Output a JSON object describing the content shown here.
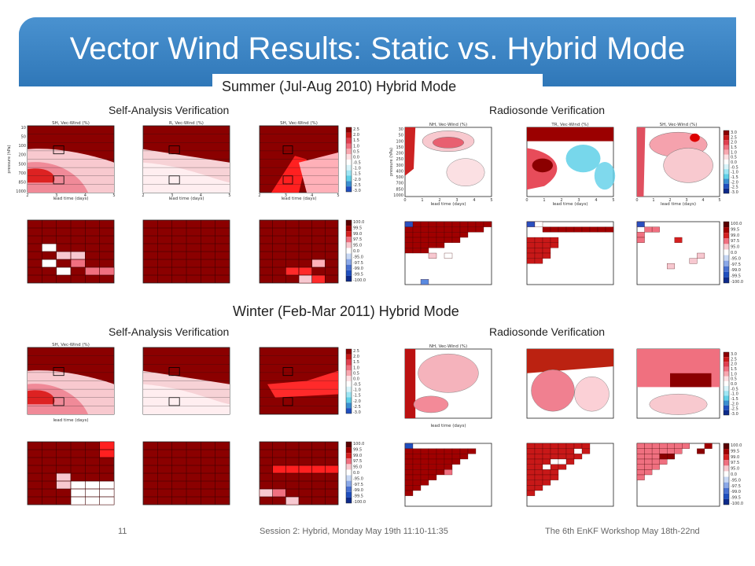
{
  "slide": {
    "title": "Vector Wind Results: Static vs. Hybrid Mode",
    "summer_heading": "Summer (Jul-Aug 2010) Hybrid Mode",
    "winter_heading": "Winter (Feb-Mar 2011) Hybrid Mode",
    "self_analysis_label": "Self-Analysis Verification",
    "radiosonde_label": "Radiosonde Verification",
    "footer_page": "11",
    "footer_session": "Session 2: Hybrid, Monday May 19th 11:10-11:35",
    "footer_workshop": "The 6th EnKF Workshop May 18th-22nd"
  },
  "colors": {
    "title_bar": "#3d86c6",
    "dark_red": "#8b0000",
    "pink": "#f4a6b0",
    "blue": "#1f4fbf",
    "cyan": "#5fd0e8"
  },
  "chart_data": [
    {
      "type": "heatmap",
      "panel": "summer-self-nh",
      "title": "SH, Vec-Wind (%)",
      "xlabel": "lead time (days)",
      "ylabel": "pressure (hPa)",
      "xlim": [
        2,
        5
      ],
      "yticks": [
        "10",
        "50",
        "100",
        "200",
        "500",
        "700",
        "850",
        "1000"
      ]
    },
    {
      "type": "heatmap",
      "panel": "summer-self-tr",
      "title": "R, Vec-Wind (%)",
      "xlabel": "lead time (days)",
      "xlim": [
        2,
        5
      ]
    },
    {
      "type": "heatmap",
      "panel": "summer-self-sh",
      "title": "SH, Vec-Wind (%)",
      "xlabel": "lead time (days)",
      "xlim": [
        2,
        5
      ],
      "colorbar": [
        "2.5",
        "2.0",
        "1.5",
        "1.0",
        "0.5",
        "0.0",
        "-0.5",
        "-1.0",
        "-1.5",
        "-2.0",
        "-2.5",
        "-3.0"
      ]
    },
    {
      "type": "heatmap",
      "panel": "summer-radio-nh",
      "title": "NH, Vec-Wind (%)",
      "xlabel": "lead time (days)",
      "ylabel": "pressure (hPa)",
      "xlim": [
        0,
        5
      ],
      "yticks": [
        "30",
        "50",
        "100",
        "150",
        "200",
        "250",
        "300",
        "400",
        "500",
        "700",
        "850",
        "1000"
      ]
    },
    {
      "type": "heatmap",
      "panel": "summer-radio-tr",
      "title": "TR, Vec-Wind (%)",
      "xlabel": "lead time (days)",
      "xlim": [
        0,
        5
      ]
    },
    {
      "type": "heatmap",
      "panel": "summer-radio-sh",
      "title": "SH, Vec-Wind (%)",
      "xlabel": "lead time (days)",
      "xlim": [
        0,
        5
      ],
      "colorbar": [
        "3.0",
        "2.5",
        "2.0",
        "1.5",
        "1.0",
        "0.5",
        "0.0",
        "-0.5",
        "-1.0",
        "-1.5",
        "-2.0",
        "-2.5",
        "-3.0"
      ]
    },
    {
      "type": "heatmap",
      "panel": "summer-sig-radio",
      "colorbar": [
        "100.0",
        "99.5",
        "99.0",
        "97.5",
        "95.0",
        "0.0",
        "-95.0",
        "-97.5",
        "-99.0",
        "-99.5",
        "-100.0"
      ]
    },
    {
      "type": "heatmap",
      "panel": "winter-self",
      "title": "SH, Vec-Wind (%)",
      "xlabel": "lead time (days)"
    },
    {
      "type": "heatmap",
      "panel": "winter-radio",
      "title": "NH, Vec-Wind (%)",
      "xlabel": "lead time (days)"
    }
  ]
}
